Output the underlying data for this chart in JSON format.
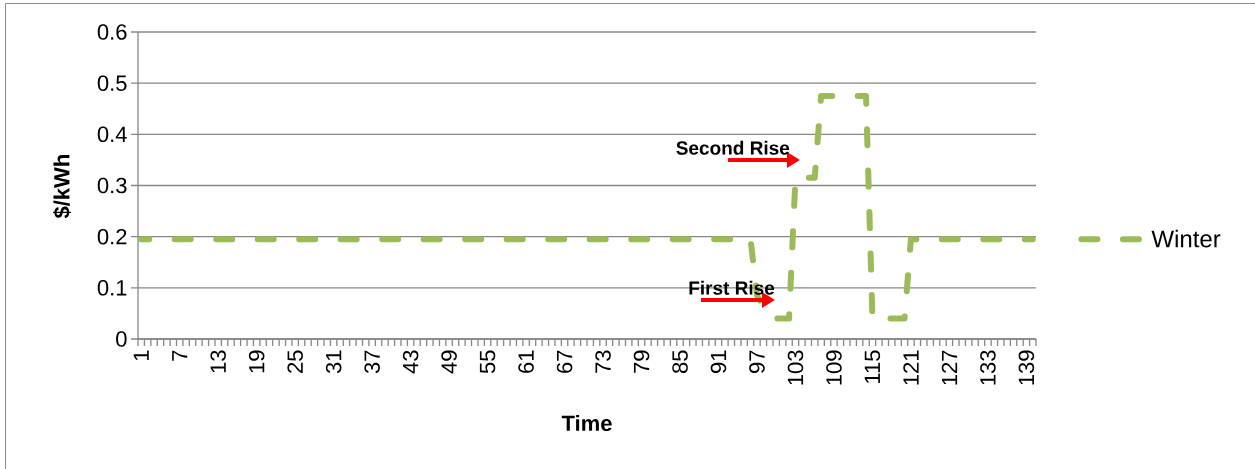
{
  "chart_data": {
    "type": "line",
    "xlabel": "Time",
    "ylabel": "$/kWh",
    "x": [
      1,
      2,
      3,
      4,
      5,
      6,
      7,
      8,
      9,
      10,
      11,
      12,
      13,
      14,
      15,
      16,
      17,
      18,
      19,
      20,
      21,
      22,
      23,
      24,
      25,
      26,
      27,
      28,
      29,
      30,
      31,
      32,
      33,
      34,
      35,
      36,
      37,
      38,
      39,
      40,
      41,
      42,
      43,
      44,
      45,
      46,
      47,
      48,
      49,
      50,
      51,
      52,
      53,
      54,
      55,
      56,
      57,
      58,
      59,
      60,
      61,
      62,
      63,
      64,
      65,
      66,
      67,
      68,
      69,
      70,
      71,
      72,
      73,
      74,
      75,
      76,
      77,
      78,
      79,
      80,
      81,
      82,
      83,
      84,
      85,
      86,
      87,
      88,
      89,
      90,
      91,
      92,
      93,
      94,
      95,
      96,
      97,
      98,
      99,
      100,
      101,
      102,
      103,
      104,
      105,
      106,
      107,
      108,
      109,
      110,
      111,
      112,
      113,
      114,
      115,
      116,
      117,
      118,
      119,
      120,
      121,
      122,
      123,
      124,
      125,
      126,
      127,
      128,
      129,
      130,
      131,
      132,
      133,
      134,
      135,
      136,
      137,
      138,
      139,
      140
    ],
    "series": [
      {
        "name": "Winter",
        "color": "#9bbb59",
        "values": [
          0.195,
          0.195,
          0.195,
          0.195,
          0.195,
          0.195,
          0.195,
          0.195,
          0.195,
          0.195,
          0.195,
          0.195,
          0.195,
          0.195,
          0.195,
          0.195,
          0.195,
          0.195,
          0.195,
          0.195,
          0.195,
          0.195,
          0.195,
          0.195,
          0.195,
          0.195,
          0.195,
          0.195,
          0.195,
          0.195,
          0.195,
          0.195,
          0.195,
          0.195,
          0.195,
          0.195,
          0.195,
          0.195,
          0.195,
          0.195,
          0.195,
          0.195,
          0.195,
          0.195,
          0.195,
          0.195,
          0.195,
          0.195,
          0.195,
          0.195,
          0.195,
          0.195,
          0.195,
          0.195,
          0.195,
          0.195,
          0.195,
          0.195,
          0.195,
          0.195,
          0.195,
          0.195,
          0.195,
          0.195,
          0.195,
          0.195,
          0.195,
          0.195,
          0.195,
          0.195,
          0.195,
          0.195,
          0.195,
          0.195,
          0.195,
          0.195,
          0.195,
          0.195,
          0.195,
          0.195,
          0.195,
          0.195,
          0.195,
          0.195,
          0.195,
          0.195,
          0.195,
          0.195,
          0.195,
          0.195,
          0.195,
          0.195,
          0.195,
          0.195,
          0.195,
          0.195,
          0.085,
          0.065,
          0.05,
          0.04,
          0.04,
          0.04,
          0.315,
          0.315,
          0.315,
          0.315,
          0.475,
          0.475,
          0.475,
          0.475,
          0.475,
          0.475,
          0.475,
          0.475,
          0.04,
          0.04,
          0.04,
          0.04,
          0.04,
          0.04,
          0.195,
          0.195,
          0.195,
          0.195,
          0.195,
          0.195,
          0.195,
          0.195,
          0.195,
          0.195,
          0.195,
          0.195,
          0.195,
          0.195,
          0.195,
          0.195,
          0.195,
          0.195,
          0.195,
          0.195
        ]
      }
    ],
    "xlim": [
      0.5,
      140.5
    ],
    "xticks": [
      1,
      7,
      13,
      19,
      25,
      31,
      37,
      43,
      49,
      55,
      61,
      67,
      73,
      79,
      85,
      91,
      97,
      103,
      109,
      115,
      121,
      127,
      133,
      139
    ],
    "ylim": [
      0,
      0.6
    ],
    "yticks": [
      0,
      0.1,
      0.2,
      0.3,
      0.4,
      0.5,
      0.6
    ],
    "grid": "y",
    "legend": "right",
    "line_style": "dashed",
    "annotations": [
      "First Rise",
      "Second Rise"
    ]
  }
}
